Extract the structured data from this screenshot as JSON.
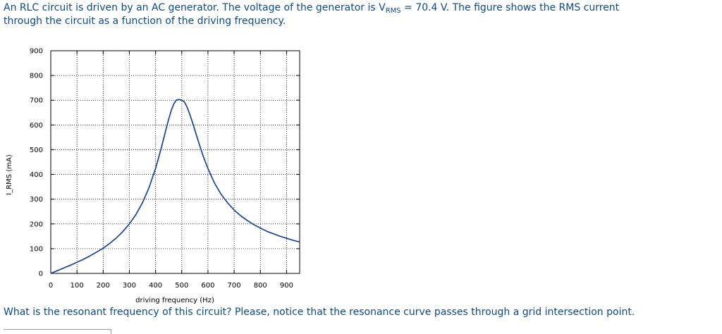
{
  "problem": {
    "line1_pre": "An RLC circuit is driven by an AC generator. The voltage of the generator is V",
    "line1_sub": "RMS",
    "line1_post": " = 70.4 V. The figure shows the RMS current",
    "line2": "through the circuit as a function of the driving frequency.",
    "question": "What is the resonant frequency of this circuit? Please, notice that the resonance curve passes through a grid intersection point."
  },
  "colors": {
    "text": "#0a4a8f",
    "curve": "#0a3a9a",
    "grid": "#000000"
  },
  "chart_data": {
    "type": "line",
    "title": "",
    "xlabel": "driving frequency (Hz)",
    "ylabel": "I_RMS (mA)",
    "xlim": [
      0,
      950
    ],
    "ylim": [
      0,
      900
    ],
    "xticks": [
      0,
      100,
      200,
      300,
      400,
      500,
      600,
      700,
      800,
      900
    ],
    "yticks": [
      0,
      100,
      200,
      300,
      400,
      500,
      600,
      700,
      800,
      900
    ],
    "grid": true,
    "series": [
      {
        "x": [
          0,
          25,
          50,
          75,
          100,
          125,
          150,
          175,
          200,
          225,
          250,
          275,
          300,
          325,
          350,
          375,
          400,
          410,
          420,
          430,
          440,
          450,
          460,
          470,
          480,
          490,
          500,
          510,
          520,
          530,
          540,
          550,
          560,
          570,
          580,
          590,
          600,
          625,
          650,
          675,
          700,
          725,
          750,
          775,
          800,
          825,
          850,
          875,
          900,
          925,
          950
        ],
        "y": [
          0,
          11,
          22,
          33,
          45,
          57,
          71,
          86,
          102,
          121,
          143,
          169,
          200,
          238,
          286,
          346,
          424,
          461,
          500,
          541,
          583,
          623,
          659,
          686,
          701,
          703,
          700,
          693,
          673,
          645,
          613,
          579,
          545,
          512,
          480,
          451,
          424,
          365,
          320,
          285,
          256,
          233,
          214,
          197,
          183,
          170,
          160,
          150,
          142,
          134,
          127
        ]
      }
    ]
  }
}
